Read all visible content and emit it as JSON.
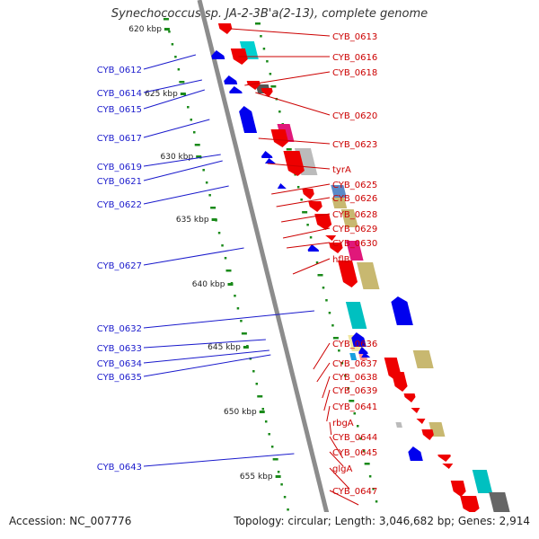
{
  "header": {
    "title": "Synechococcus sp. JA-2-3B'a(2-13), complete genome"
  },
  "footer": {
    "accession": "Accession: NC_007776",
    "topology": "Topology: circular; Length: 3,046,682 bp; Genes: 2,914"
  },
  "colors": {
    "backbone": "#8c8c8c",
    "tick": "#1a8a1a",
    "reverse_label": "#1a1acc",
    "forward_label": "#cc0000"
  },
  "kbp_ticks": [
    {
      "kbp": 620,
      "label": "620 kbp"
    },
    {
      "kbp": 625,
      "label": "625 kbp"
    },
    {
      "kbp": 630,
      "label": "630 kbp"
    },
    {
      "kbp": 635,
      "label": "635 kbp"
    },
    {
      "kbp": 640,
      "label": "640 kbp"
    },
    {
      "kbp": 645,
      "label": "645 kbp"
    },
    {
      "kbp": 650,
      "label": "650 kbp"
    },
    {
      "kbp": 655,
      "label": "655 kbp"
    }
  ],
  "reverse_genes": [
    {
      "label": "CYB_0612",
      "color": "#0000ee"
    },
    {
      "label": "CYB_0614",
      "color": "#0000ee"
    },
    {
      "label": "CYB_0615",
      "color": "#0000ee"
    },
    {
      "label": "CYB_0617",
      "color": "#0000ee"
    },
    {
      "label": "CYB_0619",
      "color": "#0000ee"
    },
    {
      "label": "CYB_0621",
      "color": "#0000ee"
    },
    {
      "label": "CYB_0622",
      "color": "#0000ee"
    },
    {
      "label": "CYB_0627",
      "color": "#0000ee"
    },
    {
      "label": "CYB_0632",
      "color": "#0000ee"
    },
    {
      "label": "CYB_0633",
      "color": "#0000ee"
    },
    {
      "label": "CYB_0634",
      "color": "#0000ee"
    },
    {
      "label": "CYB_0635",
      "color": "#0000ee"
    },
    {
      "label": "CYB_0643",
      "color": "#0000ee"
    }
  ],
  "forward_genes": [
    {
      "label": "CYB_0613",
      "color": "#ee0000"
    },
    {
      "label": "CYB_0616",
      "color": "#ee0000"
    },
    {
      "label": "CYB_0618",
      "color": "#ee0000"
    },
    {
      "label": "CYB_0620",
      "color": "#ee0000"
    },
    {
      "label": "CYB_0623",
      "color": "#ee0000"
    },
    {
      "label": "tyrA",
      "color": "#ee0000"
    },
    {
      "label": "CYB_0625",
      "color": "#ee0000"
    },
    {
      "label": "CYB_0626",
      "color": "#ee0000"
    },
    {
      "label": "CYB_0628",
      "color": "#ee0000"
    },
    {
      "label": "CYB_0629",
      "color": "#ee0000"
    },
    {
      "label": "CYB_0630",
      "color": "#ee0000"
    },
    {
      "label": "hflB",
      "color": "#ee0000"
    },
    {
      "label": "CYB_0636",
      "color": "#ee0000"
    },
    {
      "label": "CYB_0637",
      "color": "#ee0000"
    },
    {
      "label": "CYB_0638",
      "color": "#ee0000"
    },
    {
      "label": "CYB_0639",
      "color": "#ee0000"
    },
    {
      "label": "CYB_0641",
      "color": "#ee0000"
    },
    {
      "label": "rbgA",
      "color": "#ee0000"
    },
    {
      "label": "CYB_0644",
      "color": "#ee0000"
    },
    {
      "label": "CYB_0645",
      "color": "#ee0000"
    },
    {
      "label": "glgA",
      "color": "#ee0000"
    },
    {
      "label": "CYB_0647",
      "color": "#ee0000"
    }
  ],
  "cog_blocks": [
    {
      "color": "#00d0d0"
    },
    {
      "color": "#555555"
    },
    {
      "color": "#e0187a"
    },
    {
      "color": "#bbbbbb"
    },
    {
      "color": "#5a8ac8"
    },
    {
      "color": "#c8b870"
    },
    {
      "color": "#c8b870"
    },
    {
      "color": "#e0187a"
    },
    {
      "color": "#c8b870"
    },
    {
      "color": "#c8b870"
    },
    {
      "color": "#00c0c0"
    },
    {
      "color": "#f0e6a0"
    },
    {
      "color": "#ff9090"
    },
    {
      "color": "#1aa0e0"
    },
    {
      "color": "#c8b870"
    },
    {
      "color": "#bbbbbb"
    },
    {
      "color": "#00c0c0"
    },
    {
      "color": "#666666"
    }
  ]
}
